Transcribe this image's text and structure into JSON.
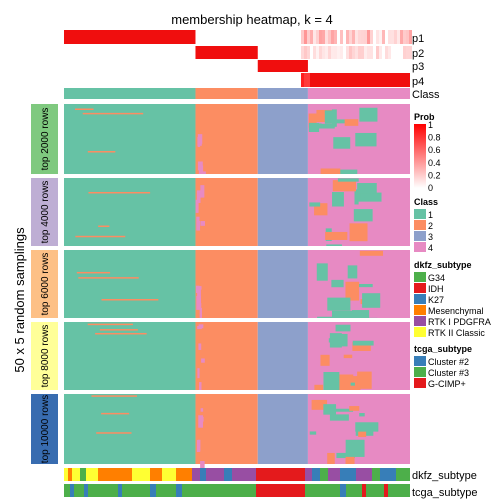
{
  "chart_data": {
    "type": "heatmap",
    "title": "membership heatmap, k = 4",
    "ylabel": "50 x 5 random samplings",
    "row_tracks": [
      "p1",
      "p2",
      "p3",
      "p4",
      "Class"
    ],
    "bottom_tracks": [
      "dkfz_subtype",
      "tcga_subtype"
    ],
    "row_groups": [
      {
        "label": "top 2000 rows",
        "color": "#7FC97F"
      },
      {
        "label": "top 4000 rows",
        "color": "#BEAED4"
      },
      {
        "label": "top 6000 rows",
        "color": "#FDC086"
      },
      {
        "label": "top 8000 rows",
        "color": "#FFFF99"
      },
      {
        "label": "top 10000 rows",
        "color": "#386CB0"
      }
    ],
    "class_colors": {
      "1": "#66C2A5",
      "2": "#FC8D62",
      "3": "#8DA0CB",
      "4": "#E78AC3"
    },
    "class_blocks": [
      {
        "class": "1",
        "fraction": 0.38
      },
      {
        "class": "2",
        "fraction": 0.18
      },
      {
        "class": "3",
        "fraction": 0.145
      },
      {
        "class": "4",
        "fraction": 0.295
      }
    ],
    "legends": {
      "prob": {
        "title": "Prob",
        "ticks": [
          "1",
          "0.8",
          "0.6",
          "0.4",
          "0.2",
          "0"
        ]
      },
      "class": {
        "title": "Class",
        "items": [
          {
            "label": "1",
            "color": "#66C2A5"
          },
          {
            "label": "2",
            "color": "#FC8D62"
          },
          {
            "label": "3",
            "color": "#8DA0CB"
          },
          {
            "label": "4",
            "color": "#E78AC3"
          }
        ]
      },
      "dkfz_subtype": {
        "title": "dkfz_subtype",
        "items": [
          {
            "label": "G34",
            "color": "#4DAF4A"
          },
          {
            "label": "IDH",
            "color": "#E41A1C"
          },
          {
            "label": "K27",
            "color": "#377EB8"
          },
          {
            "label": "Mesenchymal",
            "color": "#FF7F00"
          },
          {
            "label": "RTK I PDGFRA",
            "color": "#984EA3"
          },
          {
            "label": "RTK II Classic",
            "color": "#FFFF33"
          }
        ]
      },
      "tcga_subtype": {
        "title": "tcga_subtype",
        "items": [
          {
            "label": "Cluster #2",
            "color": "#377EB8"
          },
          {
            "label": "Cluster #3",
            "color": "#4DAF4A"
          },
          {
            "label": "G-CIMP+",
            "color": "#E41A1C"
          }
        ]
      }
    }
  }
}
